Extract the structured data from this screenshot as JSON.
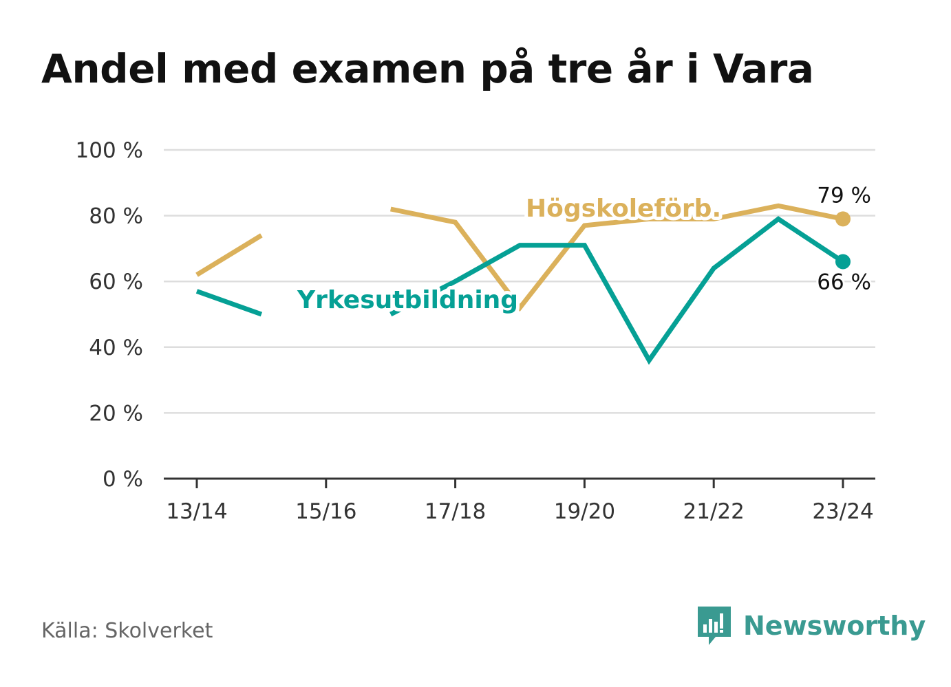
{
  "title": "Andel med examen på tre år i Vara",
  "source": "Källa: Skolverket",
  "brand": {
    "name": "Newsworthy",
    "icon": "newsworthy-logo-icon",
    "color": "#3a9a91"
  },
  "chart_data": {
    "type": "line",
    "x": [
      "13/14",
      "14/15",
      "15/16",
      "16/17",
      "17/18",
      "18/19",
      "19/20",
      "20/21",
      "21/22",
      "22/23",
      "23/24"
    ],
    "x_tick_labels": [
      "13/14",
      "15/16",
      "17/18",
      "19/20",
      "21/22",
      "23/24"
    ],
    "y_tick_labels": [
      "0 %",
      "20 %",
      "40 %",
      "60 %",
      "80 %",
      "100 %"
    ],
    "y_ticks": [
      0,
      20,
      40,
      60,
      80,
      100
    ],
    "ylim": [
      0,
      100
    ],
    "grid": true,
    "series": [
      {
        "name": "Högskoleförb.",
        "color": "#dbb15b",
        "values": [
          62,
          74,
          null,
          82,
          78,
          52,
          77,
          79,
          79,
          83,
          79
        ],
        "end_label": "79 %"
      },
      {
        "name": "Yrkesutbildning",
        "color": "#05a095",
        "values": [
          57,
          50,
          null,
          50,
          60,
          71,
          71,
          36,
          64,
          79,
          66
        ],
        "end_label": "66 %"
      }
    ]
  }
}
